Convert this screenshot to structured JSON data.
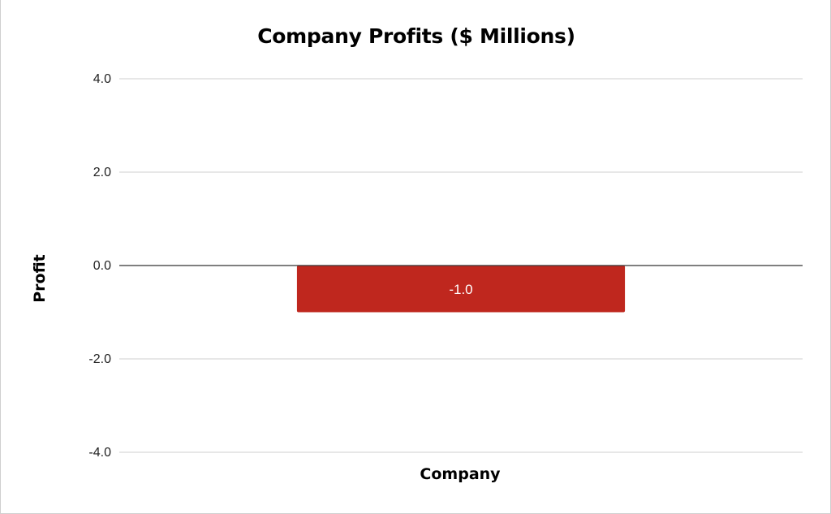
{
  "chart_data": {
    "type": "bar",
    "title": "Company Profits ($ Millions)",
    "xlabel": "Company",
    "ylabel": "Profit",
    "categories": [
      ""
    ],
    "series": [
      {
        "values": [
          -1.0
        ],
        "color": "#bf271e"
      }
    ],
    "data_labels": [
      "-1.0"
    ],
    "ylim": [
      -4.0,
      4.0
    ],
    "yticks": [
      4.0,
      2.0,
      0.0,
      -2.0,
      -4.0
    ],
    "ytick_labels": [
      "4.0",
      "2.0",
      "0.0",
      "-2.0",
      "-4.0"
    ],
    "grid": true,
    "legend": "none"
  }
}
